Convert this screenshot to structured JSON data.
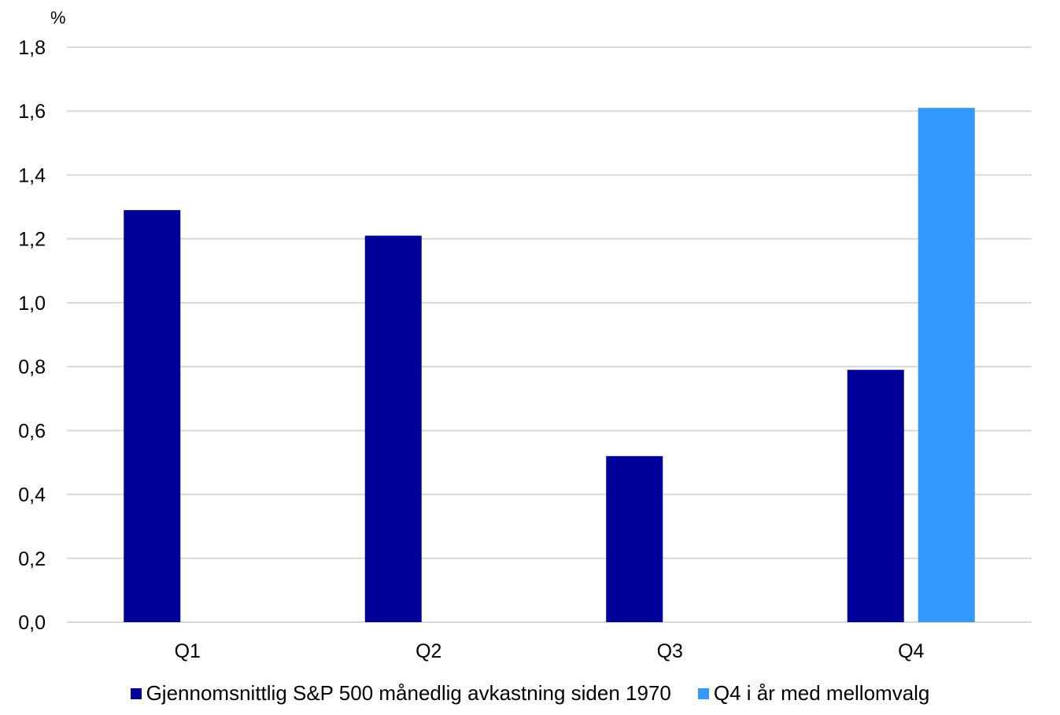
{
  "chart_data": {
    "type": "bar",
    "unit_label": "%",
    "categories": [
      "Q1",
      "Q2",
      "Q3",
      "Q4"
    ],
    "series": [
      {
        "name": "Gjennomsnittlig S&P 500 månedlig avkastning siden 1970",
        "color": "#000099",
        "values": [
          1.29,
          1.21,
          0.52,
          0.79
        ]
      },
      {
        "name": "Q4 i år med mellomvalg",
        "color": "#3399FF",
        "values": [
          null,
          null,
          null,
          1.61
        ]
      }
    ],
    "ylim": [
      0,
      1.8
    ],
    "yticks": [
      "0,0",
      "0,2",
      "0,4",
      "0,6",
      "0,8",
      "1,0",
      "1,2",
      "1,4",
      "1,6",
      "1,8"
    ],
    "grid": true,
    "gridline_color": "#D9D9D9",
    "legend_position": "bottom"
  }
}
